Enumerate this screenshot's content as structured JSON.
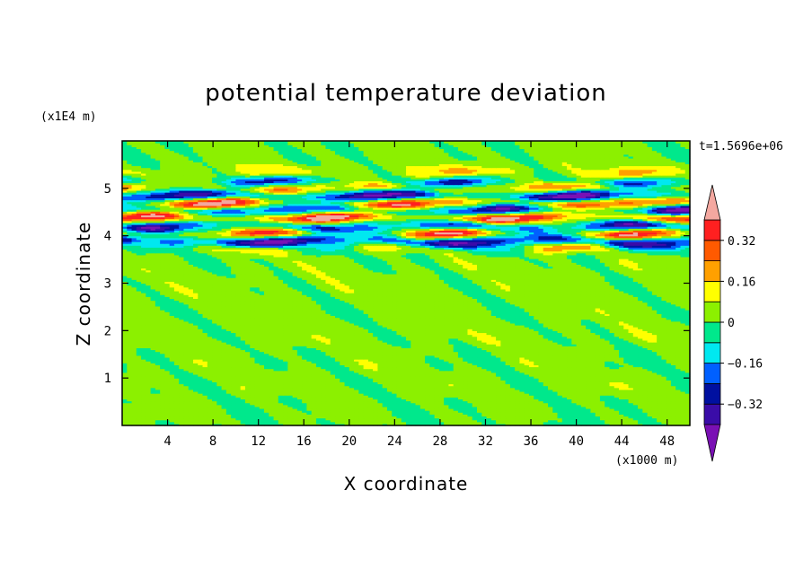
{
  "chart_data": {
    "type": "heatmap",
    "title": "potential temperature deviation",
    "xlabel": "X coordinate",
    "ylabel": "Z coordinate",
    "x_unit": "(x1000 m)",
    "y_unit": "(x1E4 m)",
    "time_label": "t=1.5696e+06",
    "xlim": [
      0,
      50
    ],
    "ylim": [
      0,
      6
    ],
    "x_ticks": [
      4,
      8,
      12,
      16,
      20,
      24,
      28,
      32,
      36,
      40,
      44,
      48
    ],
    "x_tick_labels": [
      "4",
      "8",
      "12",
      "16",
      "20",
      "24",
      "28",
      "32",
      "36",
      "40",
      "44",
      "48"
    ],
    "y_ticks": [
      1,
      2,
      3,
      4,
      5
    ],
    "y_tick_labels": [
      "1",
      "2",
      "3",
      "4",
      "5"
    ],
    "colorbar": {
      "levels": [
        -0.48,
        -0.4,
        -0.32,
        -0.24,
        -0.16,
        -0.08,
        0,
        0.08,
        0.16,
        0.24,
        0.32,
        0.4
      ],
      "labels": [
        "0.32",
        "0.16",
        "0",
        "−0.16",
        "−0.32"
      ],
      "label_values": [
        0.32,
        0.16,
        0,
        -0.16,
        -0.32
      ],
      "colors": [
        "#7a10b4",
        "#3a0ca8",
        "#0010a0",
        "#0060ff",
        "#00e8f0",
        "#00e88c",
        "#8cf000",
        "#ffff00",
        "#ffa000",
        "#ff5a00",
        "#ff2020",
        "#f4a8a0"
      ],
      "extend": "both"
    },
    "bands": [
      {
        "z": 0.3,
        "dz": 0.3,
        "value": 0.01,
        "amp": 0.03
      },
      {
        "z": 0.9,
        "dz": 0.25,
        "value": 0.03,
        "amp": 0.05
      },
      {
        "z": 1.4,
        "dz": 0.3,
        "value": 0.02,
        "amp": 0.05
      },
      {
        "z": 1.9,
        "dz": 0.3,
        "value": 0.03,
        "amp": 0.04
      },
      {
        "z": 2.4,
        "dz": 0.35,
        "value": 0.02,
        "amp": 0.04
      },
      {
        "z": 2.95,
        "dz": 0.35,
        "value": 0.03,
        "amp": 0.04
      },
      {
        "z": 3.4,
        "dz": 0.3,
        "value": 0.02,
        "amp": 0.04
      },
      {
        "z": 3.75,
        "dz": 0.12,
        "value": 0.1,
        "amp": 0.2
      },
      {
        "z": 3.9,
        "dz": 0.12,
        "value": -0.38,
        "amp": 0.15
      },
      {
        "z": 4.05,
        "dz": 0.12,
        "value": 0.3,
        "amp": 0.2
      },
      {
        "z": 4.2,
        "dz": 0.12,
        "value": -0.3,
        "amp": 0.2
      },
      {
        "z": 4.4,
        "dz": 0.12,
        "value": 0.35,
        "amp": 0.15
      },
      {
        "z": 4.55,
        "dz": 0.12,
        "value": -0.35,
        "amp": 0.15
      },
      {
        "z": 4.7,
        "dz": 0.12,
        "value": 0.38,
        "amp": 0.15
      },
      {
        "z": 4.85,
        "dz": 0.12,
        "value": -0.4,
        "amp": 0.12
      },
      {
        "z": 5.0,
        "dz": 0.12,
        "value": 0.25,
        "amp": 0.15
      },
      {
        "z": 5.15,
        "dz": 0.12,
        "value": -0.2,
        "amp": 0.15
      },
      {
        "z": 5.3,
        "dz": 0.15,
        "value": 0.1,
        "amp": 0.1
      },
      {
        "z": 5.6,
        "dz": 0.5,
        "value": 0.02,
        "amp": 0.03
      }
    ],
    "grid": false,
    "legend_position": "right"
  }
}
